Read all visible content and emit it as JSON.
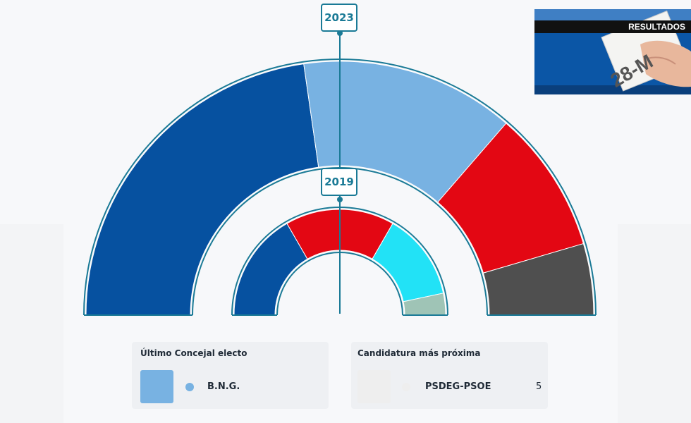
{
  "chart_data": [
    {
      "type": "pie",
      "label": "2023",
      "ring": "outer",
      "series": [
        {
          "color": "#0651a0",
          "seats": 10
        },
        {
          "color": "#78b2e2",
          "seats": 6
        },
        {
          "color": "#e30713",
          "seats": 4
        },
        {
          "color": "#4f4f4f",
          "seats": 2
        }
      ]
    },
    {
      "type": "pie",
      "label": "2019",
      "ring": "inner",
      "series": [
        {
          "color": "#0651a0",
          "seats": 5
        },
        {
          "color": "#e30713",
          "seats": 5
        },
        {
          "color": "#22e2f6",
          "seats": 4
        },
        {
          "color": "#9fc4b6",
          "seats": 1
        }
      ]
    }
  ],
  "thumbnail": {
    "banner_text": "RESULTADOS",
    "sign_text": "28-M"
  },
  "cards": {
    "last_elected": {
      "title": "Último Concejal electo",
      "party": "B.N.G.",
      "color": "#78b2e2"
    },
    "next_candidate": {
      "title": "Candidatura más próxima",
      "party": "PSDEG-PSOE",
      "value": "5",
      "color": "#eeeeee"
    }
  },
  "colors": {
    "accent": "#1a7a96",
    "ring_border": "#1a7a96"
  }
}
